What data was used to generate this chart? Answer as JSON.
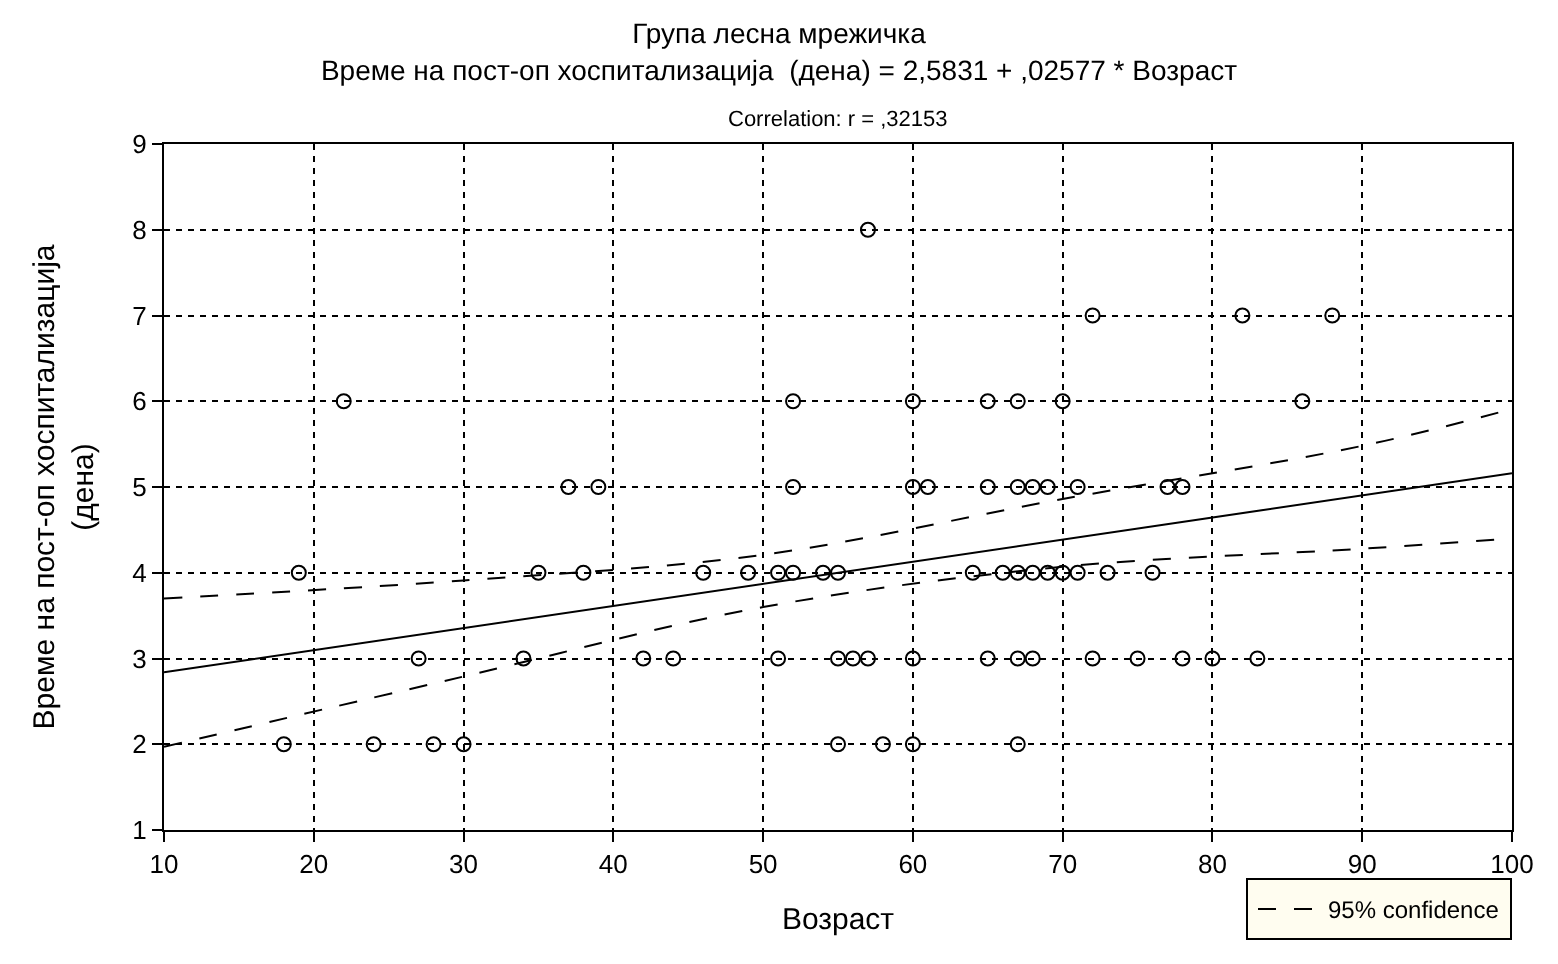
{
  "chart_data": {
    "type": "scatter",
    "title": "Група лесна мрежичка",
    "subtitle": "Време на пост-оп хоспитализација  (дена) = 2,5831 + ,02577 * Возраст",
    "annotations": [
      "Correlation: r = ,32153"
    ],
    "xlabel": "Возраст",
    "ylabel": "Време на пост-оп хоспитализација (дена)",
    "xlim": [
      10,
      100
    ],
    "xticks": [
      10,
      20,
      30,
      40,
      50,
      60,
      70,
      80,
      90,
      100
    ],
    "ylim": [
      1,
      9
    ],
    "yticks": [
      1,
      2,
      3,
      4,
      5,
      6,
      7,
      8,
      9
    ],
    "grid": true,
    "marker": "circle",
    "legend": "bottom right",
    "series": [
      {
        "color": "#000000",
        "x": [
          57,
          72,
          82,
          88,
          22,
          52,
          60,
          65,
          67,
          70,
          86,
          37,
          39,
          52,
          60,
          61,
          65,
          67,
          68,
          69,
          71,
          77,
          78,
          19,
          35,
          38,
          46,
          49,
          51,
          52,
          54,
          55,
          64,
          66,
          67,
          68,
          69,
          70,
          71,
          73,
          76,
          27,
          34,
          42,
          44,
          51,
          55,
          56,
          57,
          60,
          65,
          67,
          68,
          72,
          75,
          78,
          80,
          83,
          18,
          24,
          28,
          30,
          55,
          58,
          60,
          67
        ],
        "values": [
          8,
          7,
          7,
          7,
          6,
          6,
          6,
          6,
          6,
          6,
          6,
          5,
          5,
          5,
          5,
          5,
          5,
          5,
          5,
          5,
          5,
          5,
          5,
          4,
          4,
          4,
          4,
          4,
          4,
          4,
          4,
          4,
          4,
          4,
          4,
          4,
          4,
          4,
          4,
          4,
          4,
          3,
          3,
          3,
          3,
          3,
          3,
          3,
          3,
          3,
          3,
          3,
          3,
          3,
          3,
          3,
          3,
          3,
          2,
          2,
          2,
          2,
          2,
          2,
          2,
          2
        ]
      },
      {
        "type": "line",
        "color": "#000000",
        "marker": "none",
        "line_style": "solid",
        "x": [
          10,
          100
        ],
        "values": [
          2.84,
          5.16
        ]
      },
      {
        "type": "line",
        "name": "95% confidence",
        "color": "#000000",
        "marker": "none",
        "line_style": "dashed",
        "x": [
          10,
          30,
          50,
          70,
          90,
          100
        ],
        "values": [
          3.7,
          3.91,
          4.21,
          4.86,
          5.48,
          5.91
        ]
      },
      {
        "type": "line",
        "color": "#000000",
        "marker": "none",
        "line_style": "dashed",
        "x": [
          10,
          30,
          50,
          70,
          90,
          100
        ],
        "values": [
          1.97,
          2.79,
          3.6,
          4.07,
          4.28,
          4.4
        ]
      }
    ]
  }
}
